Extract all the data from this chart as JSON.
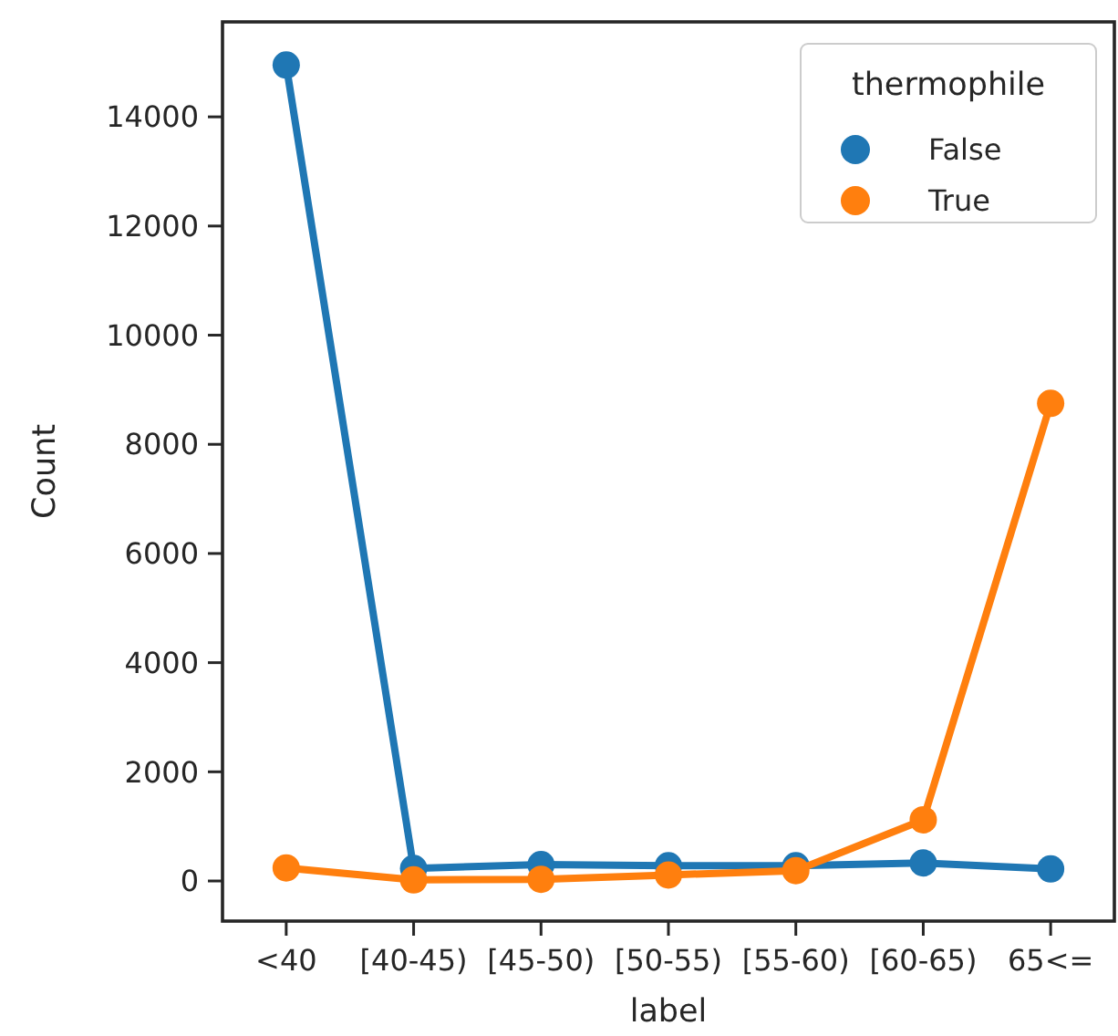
{
  "chart_data": {
    "type": "line",
    "xlabel": "label",
    "ylabel": "Count",
    "legend_title": "thermophile",
    "legend": "top right",
    "marker": "circle",
    "categories": [
      "<40",
      "[40-45)",
      "[45-50)",
      "[50-55)",
      "[55-60)",
      "[60-65)",
      "65<="
    ],
    "ylim": [
      -735,
      15740
    ],
    "yticks": [
      0,
      2000,
      4000,
      6000,
      8000,
      10000,
      12000,
      14000
    ],
    "series": [
      {
        "name": "False",
        "color": "#1f77b4",
        "values": [
          14950,
          230,
          300,
          280,
          280,
          330,
          220
        ]
      },
      {
        "name": "True",
        "color": "#ff7f0e",
        "values": [
          240,
          20,
          30,
          110,
          190,
          1120,
          8750
        ]
      }
    ]
  }
}
